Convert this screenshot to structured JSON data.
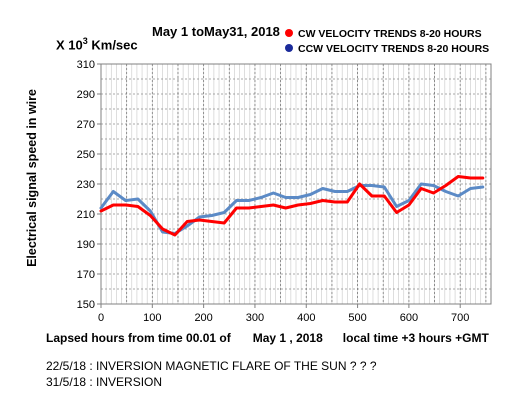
{
  "chart_data": {
    "type": "line",
    "title": "May 1 toMay31, 2018",
    "unit_prefix": "X 10",
    "unit_exp": "3",
    "unit_suffix": " Km/sec",
    "ylabel": "Electrical signal speed in wire",
    "xlabel_parts": [
      "Lapsed hours from time 00.01 of",
      "May 1 , 2018",
      "local time +3 hours +GMT"
    ],
    "xlim": [
      0,
      760
    ],
    "ylim": [
      150,
      310
    ],
    "x_ticks": [
      0,
      100,
      200,
      300,
      400,
      500,
      600,
      700
    ],
    "y_ticks": [
      150,
      170,
      190,
      210,
      230,
      250,
      270,
      290,
      310
    ],
    "grid": true,
    "legend_position": "top-right",
    "series": [
      {
        "name": "CW VELOCITY TRENDS 8-20 HOURS",
        "color": "#ff0000",
        "x": [
          0,
          24,
          48,
          72,
          96,
          120,
          144,
          168,
          192,
          216,
          240,
          264,
          288,
          312,
          336,
          360,
          384,
          408,
          432,
          456,
          480,
          504,
          528,
          552,
          576,
          600,
          624,
          648,
          672,
          696,
          720,
          744
        ],
        "y": [
          212,
          216,
          216,
          215,
          209,
          200,
          196,
          205,
          206,
          205,
          204,
          214,
          214,
          215,
          216,
          214,
          216,
          217,
          219,
          218,
          218,
          230,
          222,
          222,
          211,
          216,
          227,
          224,
          229,
          235,
          234,
          234
        ]
      },
      {
        "name": "CCW VELOCITY TRENDS 8-20 HOURS",
        "color": "#5b8ac6",
        "x": [
          0,
          24,
          48,
          72,
          96,
          120,
          144,
          168,
          192,
          216,
          240,
          264,
          288,
          312,
          336,
          360,
          384,
          408,
          432,
          456,
          480,
          504,
          528,
          552,
          576,
          600,
          624,
          648,
          672,
          696,
          720,
          744
        ],
        "y": [
          214,
          225,
          219,
          220,
          212,
          198,
          197,
          202,
          208,
          209,
          211,
          219,
          219,
          221,
          224,
          221,
          221,
          223,
          227,
          225,
          225,
          229,
          229,
          228,
          215,
          219,
          230,
          229,
          225,
          222,
          227,
          228
        ]
      }
    ]
  },
  "notes": [
    "22/5/18 : INVERSION    MAGNETIC FLARE OF THE SUN ? ? ?",
    "31/5/18 : INVERSION"
  ]
}
